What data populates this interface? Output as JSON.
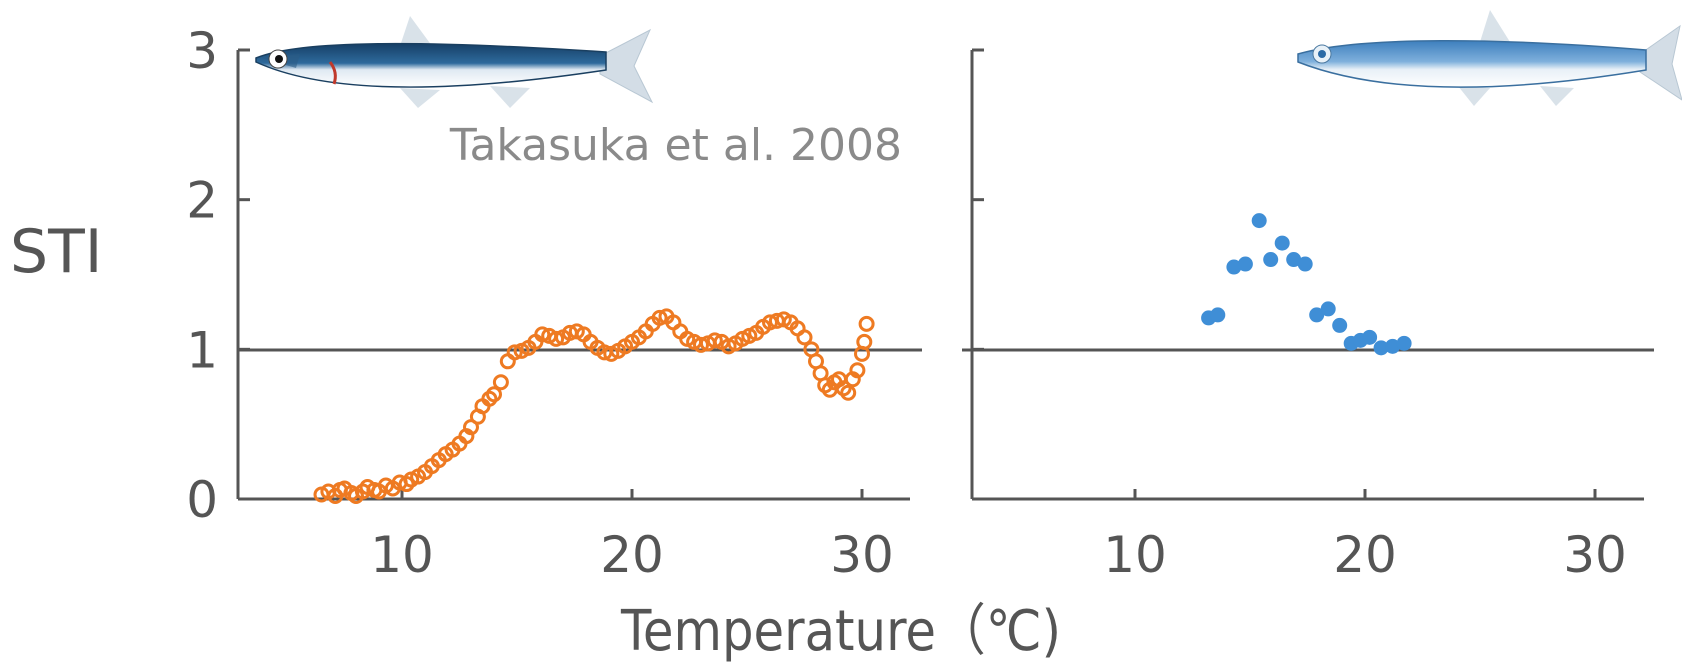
{
  "colors": {
    "axis": "#555555",
    "text": "#555555",
    "annotation": "#8a8a8a",
    "left_series": "#ee7a22",
    "right_series": "#3f8ed6",
    "fish_dark_back": "#1d4d78",
    "fish_light_back": "#4f8fc8"
  },
  "shared": {
    "ylabel": "STI",
    "xlabel": "Temperature（℃)"
  },
  "chart_data": [
    {
      "type": "scatter",
      "panel": "left",
      "marker": "open-circle",
      "xlim": [
        3,
        32
      ],
      "ylim": [
        0,
        3
      ],
      "xticks": [
        10,
        20,
        30
      ],
      "yticks": [
        0,
        1,
        2,
        3
      ],
      "reference_line_y": 1,
      "annotation": "Takasuka et al. 2008",
      "x": [
        6.5,
        6.8,
        7.1,
        7.3,
        7.5,
        7.8,
        8.0,
        8.3,
        8.5,
        8.8,
        9.0,
        9.3,
        9.6,
        9.9,
        10.2,
        10.4,
        10.7,
        11.0,
        11.3,
        11.6,
        11.9,
        12.2,
        12.5,
        12.8,
        13.0,
        13.3,
        13.5,
        13.8,
        14.0,
        14.3,
        14.6,
        14.9,
        15.2,
        15.5,
        15.8,
        16.1,
        16.4,
        16.7,
        17.0,
        17.3,
        17.6,
        17.9,
        18.2,
        18.5,
        18.8,
        19.1,
        19.4,
        19.7,
        20.0,
        20.3,
        20.6,
        20.9,
        21.2,
        21.5,
        21.8,
        22.1,
        22.4,
        22.7,
        23.0,
        23.3,
        23.6,
        23.9,
        24.2,
        24.5,
        24.8,
        25.1,
        25.4,
        25.7,
        26.0,
        26.3,
        26.6,
        26.9,
        27.2,
        27.5,
        27.8,
        28.0,
        28.2,
        28.4,
        28.6,
        28.8,
        29.0,
        29.2,
        29.4,
        29.6,
        29.8,
        30.0,
        30.1,
        30.2
      ],
      "y": [
        0.03,
        0.05,
        0.02,
        0.06,
        0.07,
        0.04,
        0.02,
        0.05,
        0.08,
        0.06,
        0.05,
        0.09,
        0.07,
        0.11,
        0.1,
        0.13,
        0.15,
        0.18,
        0.22,
        0.26,
        0.3,
        0.33,
        0.37,
        0.42,
        0.48,
        0.55,
        0.62,
        0.67,
        0.7,
        0.78,
        0.92,
        0.98,
        0.99,
        1.01,
        1.05,
        1.1,
        1.09,
        1.07,
        1.08,
        1.11,
        1.12,
        1.1,
        1.05,
        1.01,
        0.98,
        0.97,
        0.99,
        1.02,
        1.05,
        1.08,
        1.12,
        1.17,
        1.21,
        1.22,
        1.18,
        1.12,
        1.07,
        1.05,
        1.03,
        1.04,
        1.06,
        1.05,
        1.02,
        1.04,
        1.07,
        1.09,
        1.11,
        1.15,
        1.18,
        1.19,
        1.2,
        1.18,
        1.14,
        1.08,
        1.0,
        0.92,
        0.84,
        0.76,
        0.73,
        0.78,
        0.8,
        0.74,
        0.71,
        0.8,
        0.86,
        0.97,
        1.05,
        1.17
      ]
    },
    {
      "type": "scatter",
      "panel": "right",
      "marker": "filled-circle",
      "xlim": [
        3,
        32
      ],
      "ylim": [
        0,
        3
      ],
      "xticks": [
        10,
        20,
        30
      ],
      "yticks": [
        0,
        1,
        2,
        3
      ],
      "reference_line_y": 1,
      "x": [
        13.2,
        13.6,
        14.3,
        14.8,
        15.4,
        15.9,
        16.4,
        16.9,
        17.4,
        17.9,
        18.4,
        18.9,
        19.4,
        19.8,
        20.2,
        20.7,
        21.2,
        21.7
      ],
      "y": [
        1.21,
        1.23,
        1.55,
        1.57,
        1.86,
        1.6,
        1.71,
        1.6,
        1.57,
        1.23,
        1.27,
        1.16,
        1.04,
        1.06,
        1.08,
        1.01,
        1.02,
        1.04
      ]
    }
  ]
}
